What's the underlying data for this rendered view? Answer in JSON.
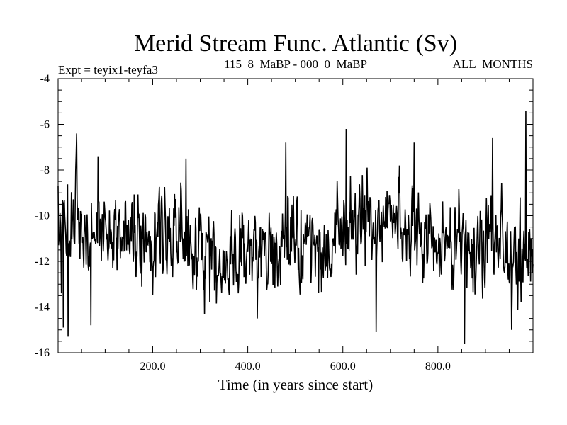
{
  "chart_data": {
    "type": "line",
    "title": "Merid Stream Func. Atlantic (Sv)",
    "subtitle_left": "Expt = teyix1-teyfa3",
    "subtitle_center": "115_8_MaBP - 000_0_MaBP",
    "subtitle_right": "ALL_MONTHS",
    "xlabel": "Time (in years since start)",
    "ylabel": "",
    "xlim": [
      1,
      1000
    ],
    "ylim": [
      -16,
      -4
    ],
    "x_ticks": [
      200,
      400,
      600,
      800
    ],
    "x_tick_labels": [
      "200.0",
      "400.0",
      "600.0",
      "800.0"
    ],
    "y_ticks": [
      -16,
      -14,
      -12,
      -10,
      -8,
      -6,
      -4
    ],
    "y_tick_labels": [
      "-16",
      "-14",
      "-12",
      "-10",
      "-8",
      "-6",
      "-4"
    ],
    "grid": false,
    "series": [
      {
        "name": "Atlantic meridional stream function",
        "x_start": 1,
        "x_step": 1,
        "length": 1000,
        "mean": -11.2,
        "std": 1.1,
        "min": -15.6,
        "max": -5.4,
        "notable_points": [
          {
            "x": 1,
            "y": -8.7
          },
          {
            "x": 8,
            "y": -13.4
          },
          {
            "x": 12,
            "y": -14.9
          },
          {
            "x": 22,
            "y": -15.3
          },
          {
            "x": 40,
            "y": -6.4
          },
          {
            "x": 70,
            "y": -14.8
          },
          {
            "x": 85,
            "y": -7.4
          },
          {
            "x": 270,
            "y": -7.5
          },
          {
            "x": 420,
            "y": -14.5
          },
          {
            "x": 480,
            "y": -6.8
          },
          {
            "x": 607,
            "y": -6.2
          },
          {
            "x": 670,
            "y": -15.1
          },
          {
            "x": 750,
            "y": -6.8
          },
          {
            "x": 856,
            "y": -15.6
          },
          {
            "x": 915,
            "y": -6.6
          },
          {
            "x": 955,
            "y": -15.0
          },
          {
            "x": 985,
            "y": -5.4
          }
        ],
        "color": "#000000"
      }
    ]
  }
}
